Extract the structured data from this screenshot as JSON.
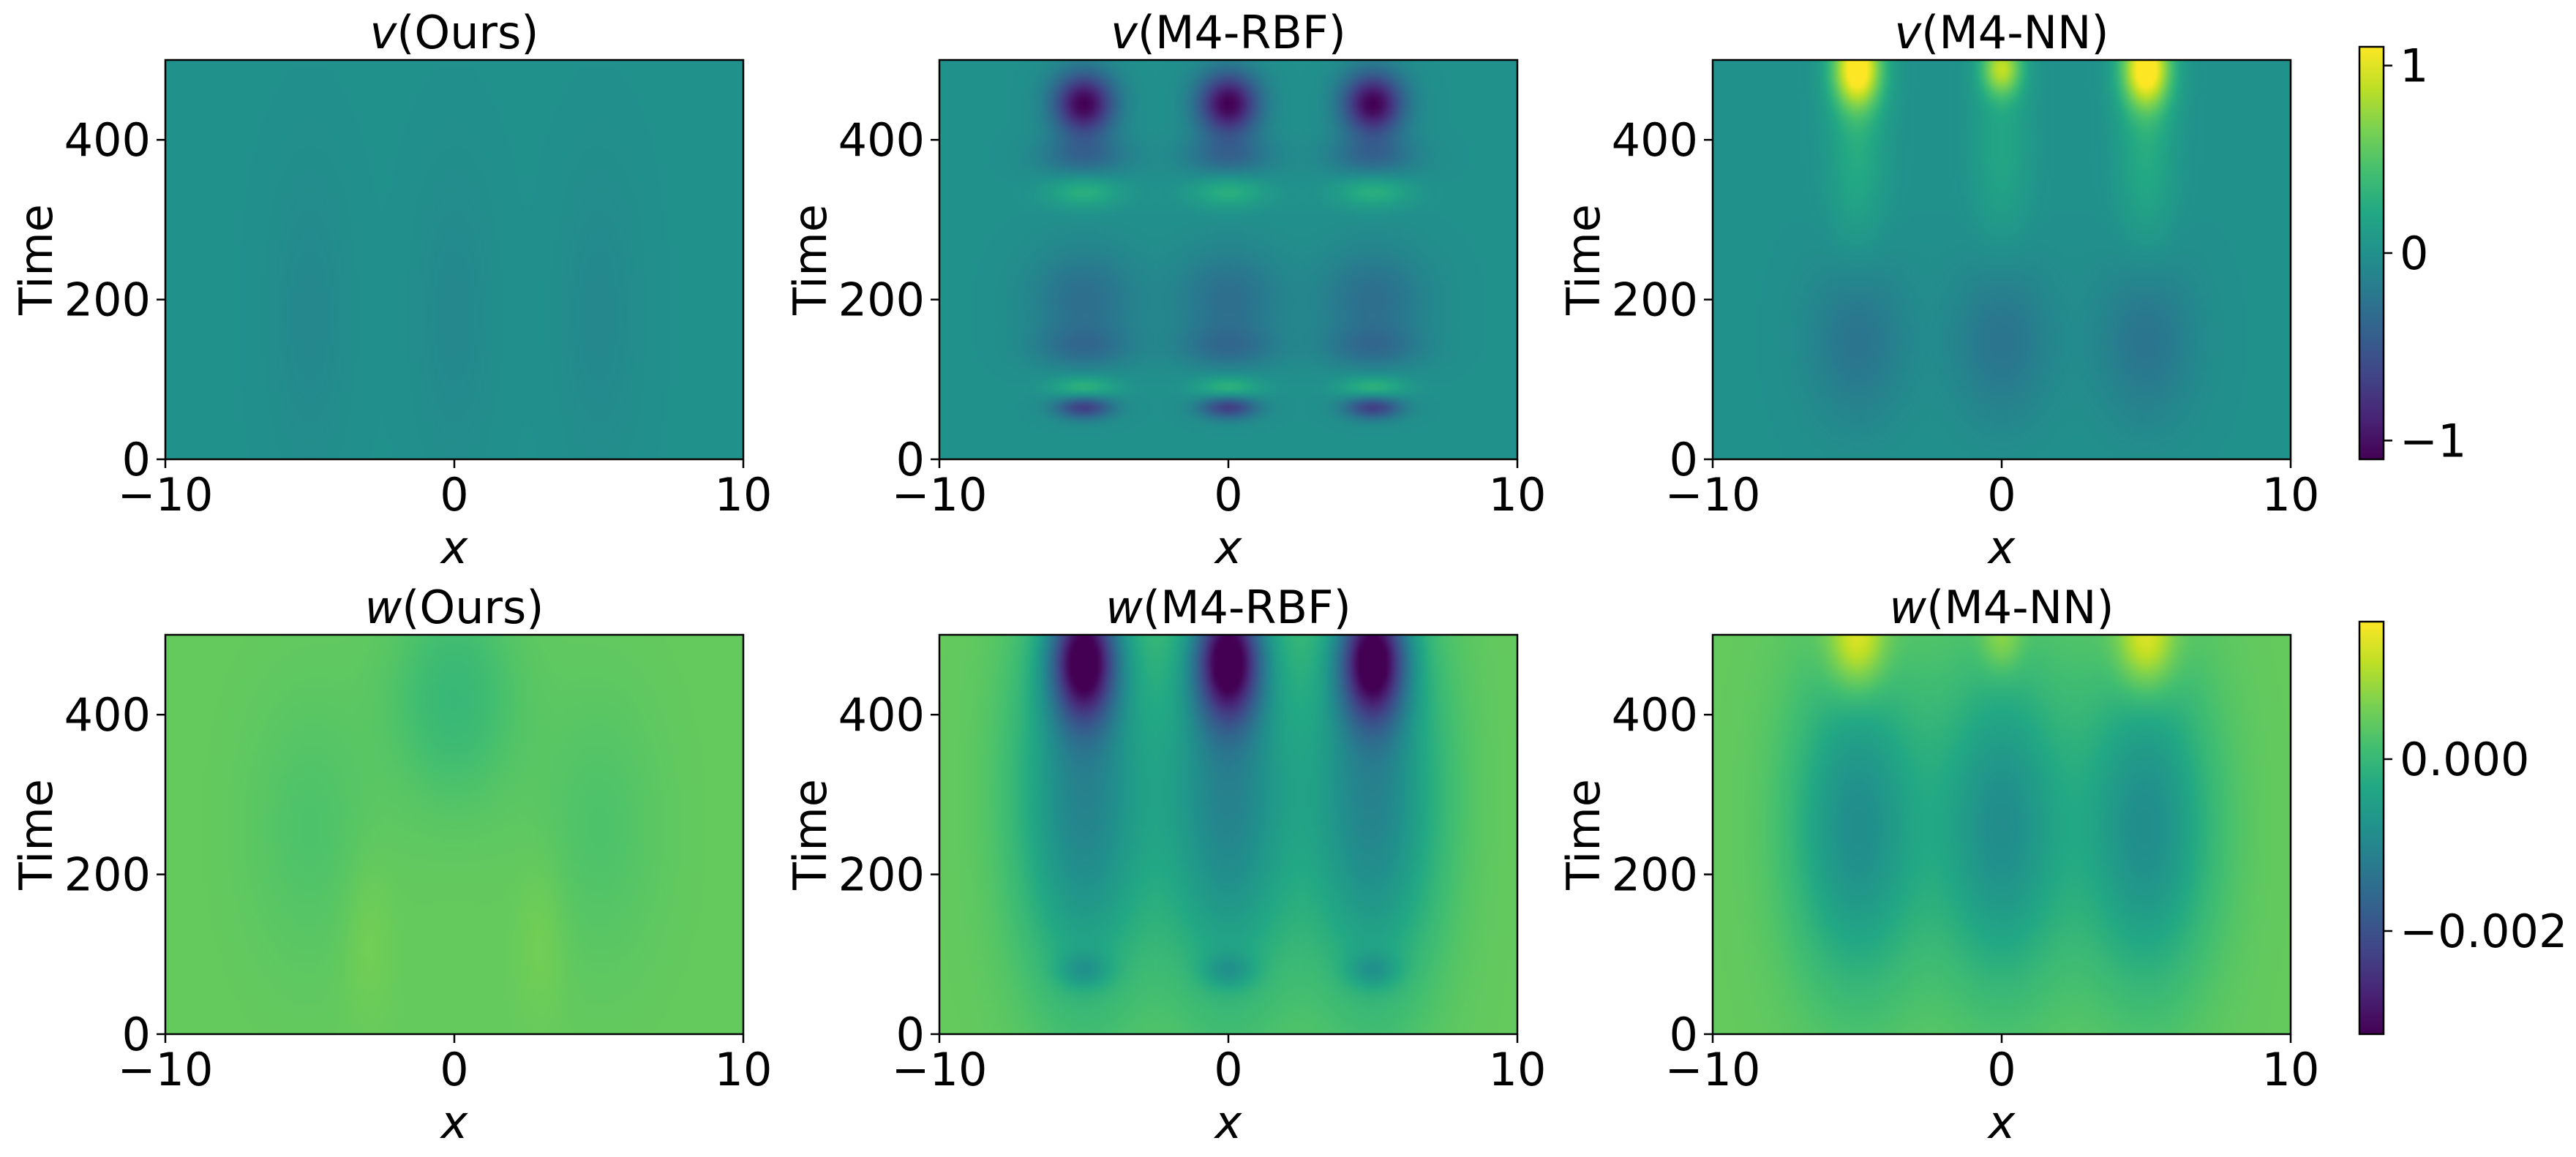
{
  "colormap": "viridis",
  "colormap_stops": [
    "#440154",
    "#482475",
    "#414487",
    "#355f8d",
    "#2a788e",
    "#21918c",
    "#22a884",
    "#44bf70",
    "#7ad151",
    "#bddf26",
    "#fde725"
  ],
  "chart_data": [
    {
      "type": "heatmap",
      "variable": "v",
      "method": "Ours",
      "title": {
        "var": "v",
        "method": "(Ours)"
      },
      "xlabel": "x",
      "ylabel": "Time",
      "xlim": [
        -10,
        10
      ],
      "ylim": [
        0,
        500
      ],
      "xticks": [
        "−10",
        "0",
        "10"
      ],
      "yticks": [
        "0",
        "200",
        "400"
      ],
      "value_range": [
        -1.1,
        1.1
      ],
      "base": 0.0,
      "blobs": [
        {
          "x": -5,
          "t": 180,
          "sx": 1.0,
          "st": 130,
          "a": -0.08
        },
        {
          "x": 0,
          "t": 180,
          "sx": 1.0,
          "st": 130,
          "a": -0.08
        },
        {
          "x": 5,
          "t": 180,
          "sx": 1.0,
          "st": 130,
          "a": -0.08
        }
      ]
    },
    {
      "type": "heatmap",
      "variable": "v",
      "method": "M4-RBF",
      "title": {
        "var": "v",
        "method": "(M4-RBF)"
      },
      "xlabel": "x",
      "ylabel": "Time",
      "xlim": [
        -10,
        10
      ],
      "ylim": [
        0,
        500
      ],
      "xticks": [
        "−10",
        "0",
        "10"
      ],
      "yticks": [
        "0",
        "200",
        "400"
      ],
      "value_range": [
        -1.1,
        1.1
      ],
      "base": 0.0,
      "blobs": [
        {
          "x": -5,
          "t": 445,
          "sx": 0.75,
          "st": 28,
          "a": -1.1
        },
        {
          "x": 0,
          "t": 445,
          "sx": 0.75,
          "st": 28,
          "a": -1.1
        },
        {
          "x": 5,
          "t": 445,
          "sx": 0.75,
          "st": 28,
          "a": -1.1
        },
        {
          "x": -5,
          "t": 380,
          "sx": 1.1,
          "st": 18,
          "a": -0.35
        },
        {
          "x": 0,
          "t": 380,
          "sx": 1.1,
          "st": 18,
          "a": -0.35
        },
        {
          "x": 5,
          "t": 380,
          "sx": 1.1,
          "st": 18,
          "a": -0.35
        },
        {
          "x": -5,
          "t": 335,
          "sx": 0.9,
          "st": 14,
          "a": 0.3
        },
        {
          "x": 0,
          "t": 335,
          "sx": 0.9,
          "st": 14,
          "a": 0.3
        },
        {
          "x": 5,
          "t": 335,
          "sx": 0.9,
          "st": 14,
          "a": 0.3
        },
        {
          "x": -5,
          "t": 200,
          "sx": 1.3,
          "st": 45,
          "a": -0.3
        },
        {
          "x": 0,
          "t": 200,
          "sx": 1.3,
          "st": 45,
          "a": -0.3
        },
        {
          "x": 5,
          "t": 200,
          "sx": 1.3,
          "st": 45,
          "a": -0.3
        },
        {
          "x": -5,
          "t": 140,
          "sx": 1.2,
          "st": 18,
          "a": -0.25
        },
        {
          "x": 0,
          "t": 140,
          "sx": 1.2,
          "st": 18,
          "a": -0.25
        },
        {
          "x": 5,
          "t": 140,
          "sx": 1.2,
          "st": 18,
          "a": -0.25
        },
        {
          "x": -5,
          "t": 90,
          "sx": 0.8,
          "st": 10,
          "a": 0.35
        },
        {
          "x": 0,
          "t": 90,
          "sx": 0.8,
          "st": 10,
          "a": 0.35
        },
        {
          "x": 5,
          "t": 90,
          "sx": 0.8,
          "st": 10,
          "a": 0.35
        },
        {
          "x": -5,
          "t": 65,
          "sx": 0.7,
          "st": 10,
          "a": -0.7
        },
        {
          "x": 0,
          "t": 65,
          "sx": 0.7,
          "st": 10,
          "a": -0.7
        },
        {
          "x": 5,
          "t": 65,
          "sx": 0.7,
          "st": 10,
          "a": -0.7
        }
      ]
    },
    {
      "type": "heatmap",
      "variable": "v",
      "method": "M4-NN",
      "title": {
        "var": "v",
        "method": "(M4-NN)"
      },
      "xlabel": "x",
      "ylabel": "Time",
      "xlim": [
        -10,
        10
      ],
      "ylim": [
        0,
        500
      ],
      "xticks": [
        "−10",
        "0",
        "10"
      ],
      "yticks": [
        "0",
        "200",
        "400"
      ],
      "value_range": [
        -1.1,
        1.1
      ],
      "base": 0.0,
      "blobs": [
        {
          "x": -5,
          "t": 490,
          "sx": 0.6,
          "st": 35,
          "a": 1.15
        },
        {
          "x": 0,
          "t": 490,
          "sx": 0.5,
          "st": 25,
          "a": 0.8
        },
        {
          "x": 5,
          "t": 490,
          "sx": 0.6,
          "st": 35,
          "a": 1.15
        },
        {
          "x": -5,
          "t": 390,
          "sx": 0.7,
          "st": 90,
          "a": 0.25
        },
        {
          "x": 0,
          "t": 390,
          "sx": 0.7,
          "st": 90,
          "a": 0.2
        },
        {
          "x": 5,
          "t": 390,
          "sx": 0.7,
          "st": 90,
          "a": 0.25
        },
        {
          "x": -5,
          "t": 150,
          "sx": 1.2,
          "st": 70,
          "a": -0.25
        },
        {
          "x": 0,
          "t": 150,
          "sx": 1.2,
          "st": 70,
          "a": -0.25
        },
        {
          "x": 5,
          "t": 150,
          "sx": 1.2,
          "st": 70,
          "a": -0.25
        }
      ]
    },
    {
      "type": "heatmap",
      "variable": "w",
      "method": "Ours",
      "title": {
        "var": "w",
        "method": "(Ours)"
      },
      "xlabel": "x",
      "ylabel": "Time",
      "xlim": [
        -10,
        10
      ],
      "ylim": [
        0,
        500
      ],
      "xticks": [
        "−10",
        "0",
        "10"
      ],
      "yticks": [
        "0",
        "200",
        "400"
      ],
      "value_range": [
        -0.0032,
        0.0016
      ],
      "base": 0.00045,
      "blobs": [
        {
          "x": 0,
          "t": 420,
          "sx": 1.5,
          "st": 90,
          "a": -0.00045
        },
        {
          "x": -5,
          "t": 260,
          "sx": 1.5,
          "st": 120,
          "a": -0.0002
        },
        {
          "x": 5,
          "t": 260,
          "sx": 1.5,
          "st": 120,
          "a": -0.0002
        },
        {
          "x": -3,
          "t": 120,
          "sx": 0.6,
          "st": 70,
          "a": 0.00015
        },
        {
          "x": 3,
          "t": 120,
          "sx": 0.6,
          "st": 70,
          "a": 0.00015
        }
      ]
    },
    {
      "type": "heatmap",
      "variable": "w",
      "method": "M4-RBF",
      "title": {
        "var": "w",
        "method": "(M4-RBF)"
      },
      "xlabel": "x",
      "ylabel": "Time",
      "xlim": [
        -10,
        10
      ],
      "ylim": [
        0,
        500
      ],
      "xticks": [
        "−10",
        "0",
        "10"
      ],
      "yticks": [
        "0",
        "200",
        "400"
      ],
      "value_range": [
        -0.0032,
        0.0016
      ],
      "base": 0.00045,
      "blobs": [
        {
          "x": -5,
          "t": 470,
          "sx": 0.8,
          "st": 55,
          "a": -0.0033
        },
        {
          "x": 0,
          "t": 470,
          "sx": 0.8,
          "st": 55,
          "a": -0.0033
        },
        {
          "x": 5,
          "t": 470,
          "sx": 0.8,
          "st": 55,
          "a": -0.0033
        },
        {
          "x": -5,
          "t": 300,
          "sx": 1.6,
          "st": 170,
          "a": -0.0015
        },
        {
          "x": 0,
          "t": 300,
          "sx": 1.6,
          "st": 170,
          "a": -0.0015
        },
        {
          "x": 5,
          "t": 300,
          "sx": 1.6,
          "st": 170,
          "a": -0.0015
        },
        {
          "x": -5,
          "t": 80,
          "sx": 0.6,
          "st": 15,
          "a": -0.0006
        },
        {
          "x": 0,
          "t": 80,
          "sx": 0.6,
          "st": 15,
          "a": -0.0006
        },
        {
          "x": 5,
          "t": 80,
          "sx": 0.6,
          "st": 15,
          "a": -0.0006
        }
      ]
    },
    {
      "type": "heatmap",
      "variable": "w",
      "method": "M4-NN",
      "title": {
        "var": "w",
        "method": "(M4-NN)"
      },
      "xlabel": "x",
      "ylabel": "Time",
      "xlim": [
        -10,
        10
      ],
      "ylim": [
        0,
        500
      ],
      "xticks": [
        "−10",
        "0",
        "10"
      ],
      "yticks": [
        "0",
        "200",
        "400"
      ],
      "value_range": [
        -0.0032,
        0.0016
      ],
      "base": 0.00045,
      "blobs": [
        {
          "x": -5,
          "t": 495,
          "sx": 0.7,
          "st": 45,
          "a": 0.0012
        },
        {
          "x": 0,
          "t": 495,
          "sx": 0.5,
          "st": 30,
          "a": 0.0006
        },
        {
          "x": 5,
          "t": 495,
          "sx": 0.7,
          "st": 45,
          "a": 0.0012
        },
        {
          "x": -5,
          "t": 260,
          "sx": 1.6,
          "st": 140,
          "a": -0.0013
        },
        {
          "x": 0,
          "t": 260,
          "sx": 1.6,
          "st": 140,
          "a": -0.0013
        },
        {
          "x": 5,
          "t": 260,
          "sx": 1.6,
          "st": 140,
          "a": -0.0013
        }
      ]
    }
  ],
  "colorbars": [
    {
      "row": 0,
      "range": [
        -1.1,
        1.1
      ],
      "ticks": [
        {
          "value": 1,
          "label": "1"
        },
        {
          "value": 0,
          "label": "0"
        },
        {
          "value": -1,
          "label": "−1"
        }
      ]
    },
    {
      "row": 1,
      "range": [
        -0.0032,
        0.0016
      ],
      "ticks": [
        {
          "value": 0.0,
          "label": "0.000"
        },
        {
          "value": -0.002,
          "label": "−0.002"
        }
      ]
    }
  ]
}
